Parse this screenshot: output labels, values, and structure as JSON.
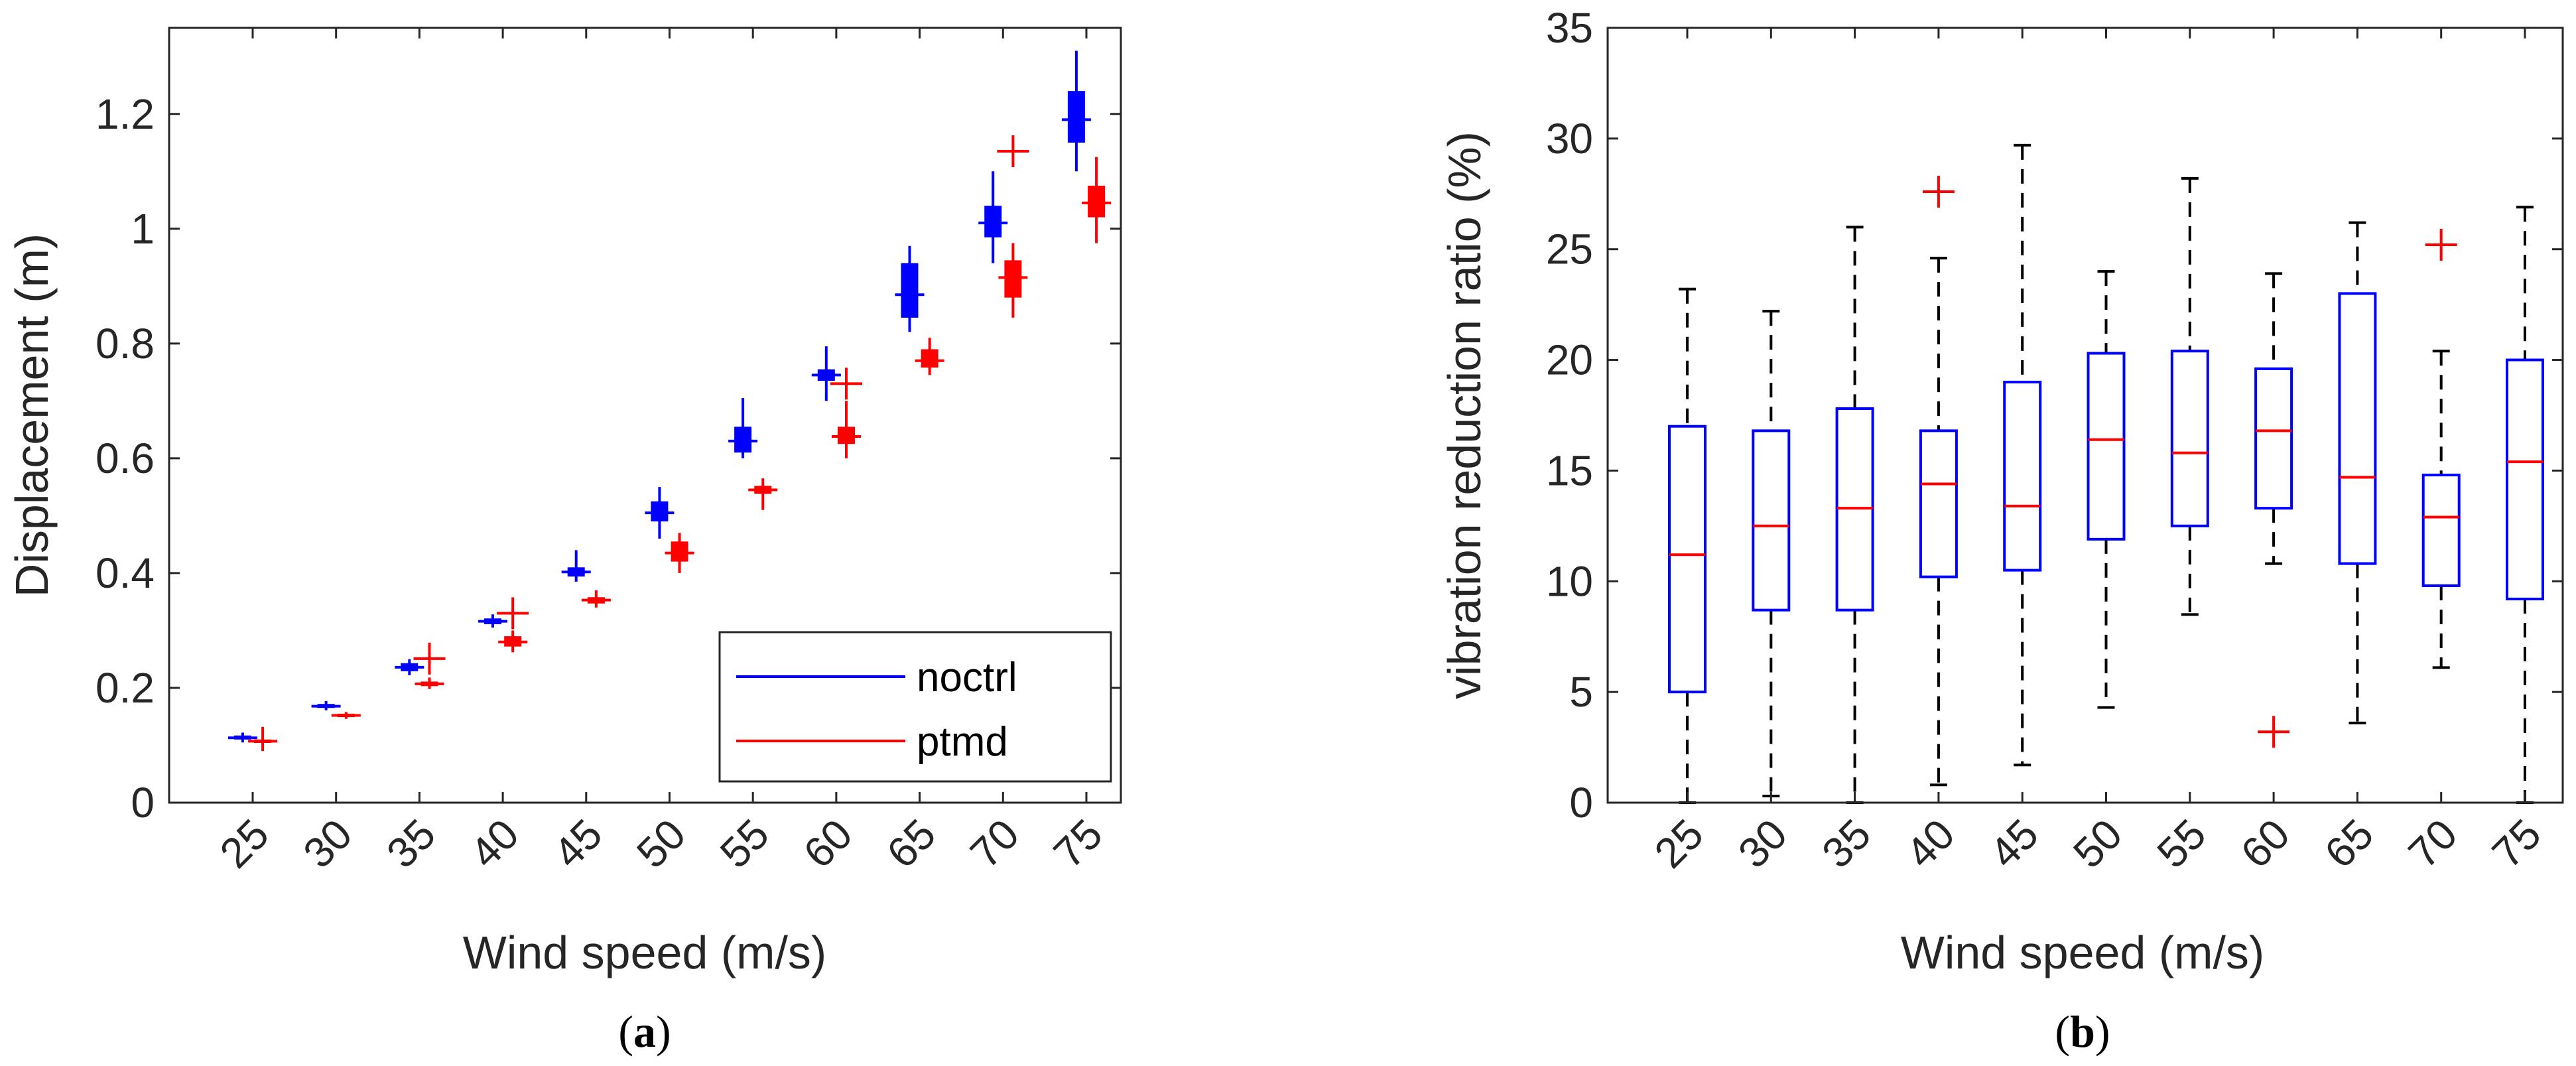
{
  "colors": {
    "noctrl": "#0000ff",
    "ptmd": "#ff0000",
    "whisker": "#000000",
    "axis": "#262626"
  },
  "chart_data": [
    {
      "type": "box",
      "panel": "a",
      "caption": {
        "open": "(",
        "letter": "a",
        "close": ")"
      },
      "xlabel": "Wind speed (m/s)",
      "ylabel": "Displacement (m)",
      "categories": [
        "25",
        "30",
        "35",
        "40",
        "45",
        "50",
        "55",
        "60",
        "65",
        "70",
        "75"
      ],
      "ylim": [
        0,
        1.35
      ],
      "yticks": [
        0,
        0.2,
        0.4,
        0.6,
        0.8,
        1,
        1.2
      ],
      "ytick_labels": [
        "0",
        "0.2",
        "0.4",
        "0.6",
        "0.8",
        "1",
        "1.2"
      ],
      "grid": false,
      "legend": {
        "position": "bottom-right",
        "entries": [
          "noctrl",
          "ptmd"
        ]
      },
      "series": [
        {
          "name": "noctrl",
          "color": "#0000ff",
          "offset": -0.12,
          "boxes": [
            {
              "lw": 0.105,
              "q1": 0.11,
              "median": 0.113,
              "q3": 0.117,
              "uw": 0.122,
              "outliers": []
            },
            {
              "lw": 0.161,
              "q1": 0.165,
              "median": 0.168,
              "q3": 0.172,
              "uw": 0.177,
              "outliers": []
            },
            {
              "lw": 0.222,
              "q1": 0.229,
              "median": 0.236,
              "q3": 0.243,
              "uw": 0.25,
              "outliers": []
            },
            {
              "lw": 0.305,
              "q1": 0.311,
              "median": 0.316,
              "q3": 0.321,
              "uw": 0.328,
              "outliers": []
            },
            {
              "lw": 0.385,
              "q1": 0.394,
              "median": 0.402,
              "q3": 0.41,
              "uw": 0.44,
              "outliers": []
            },
            {
              "lw": 0.46,
              "q1": 0.49,
              "median": 0.505,
              "q3": 0.525,
              "uw": 0.55,
              "outliers": []
            },
            {
              "lw": 0.6,
              "q1": 0.61,
              "median": 0.63,
              "q3": 0.655,
              "uw": 0.705,
              "outliers": []
            },
            {
              "lw": 0.7,
              "q1": 0.735,
              "median": 0.745,
              "q3": 0.755,
              "uw": 0.795,
              "outliers": []
            },
            {
              "lw": 0.82,
              "q1": 0.845,
              "median": 0.885,
              "q3": 0.94,
              "uw": 0.97,
              "outliers": []
            },
            {
              "lw": 0.94,
              "q1": 0.985,
              "median": 1.01,
              "q3": 1.04,
              "uw": 1.1,
              "outliers": []
            },
            {
              "lw": 1.1,
              "q1": 1.15,
              "median": 1.19,
              "q3": 1.24,
              "uw": 1.31,
              "outliers": []
            }
          ]
        },
        {
          "name": "ptmd",
          "color": "#ff0000",
          "offset": 0.12,
          "boxes": [
            {
              "lw": 0.09,
              "q1": 0.104,
              "median": 0.107,
              "q3": 0.11,
              "uw": 0.132,
              "outliers": []
            },
            {
              "lw": 0.146,
              "q1": 0.149,
              "median": 0.152,
              "q3": 0.155,
              "uw": 0.158,
              "outliers": []
            },
            {
              "lw": 0.198,
              "q1": 0.203,
              "median": 0.207,
              "q3": 0.211,
              "uw": 0.218,
              "outliers": [
                0.251
              ]
            },
            {
              "lw": 0.262,
              "q1": 0.272,
              "median": 0.28,
              "q3": 0.29,
              "uw": 0.3,
              "outliers": [
                0.33
              ]
            },
            {
              "lw": 0.34,
              "q1": 0.347,
              "median": 0.353,
              "q3": 0.358,
              "uw": 0.37,
              "outliers": []
            },
            {
              "lw": 0.4,
              "q1": 0.42,
              "median": 0.435,
              "q3": 0.455,
              "uw": 0.47,
              "outliers": []
            },
            {
              "lw": 0.51,
              "q1": 0.538,
              "median": 0.545,
              "q3": 0.552,
              "uw": 0.565,
              "outliers": []
            },
            {
              "lw": 0.6,
              "q1": 0.625,
              "median": 0.638,
              "q3": 0.655,
              "uw": 0.7,
              "outliers": [
                0.73
              ]
            },
            {
              "lw": 0.745,
              "q1": 0.758,
              "median": 0.77,
              "q3": 0.79,
              "uw": 0.81,
              "outliers": []
            },
            {
              "lw": 0.845,
              "q1": 0.88,
              "median": 0.915,
              "q3": 0.945,
              "uw": 0.975,
              "outliers": [
                1.135
              ]
            },
            {
              "lw": 0.975,
              "q1": 1.02,
              "median": 1.045,
              "q3": 1.075,
              "uw": 1.125,
              "outliers": []
            }
          ]
        }
      ]
    },
    {
      "type": "box",
      "panel": "b",
      "caption": {
        "open": "(",
        "letter": "b",
        "close": ")"
      },
      "xlabel": "Wind speed (m/s)",
      "ylabel": "vibration reduction ratio (%)",
      "categories": [
        "25",
        "30",
        "35",
        "40",
        "45",
        "50",
        "55",
        "60",
        "65",
        "70",
        "75"
      ],
      "ylim": [
        0,
        35
      ],
      "yticks": [
        0,
        5,
        10,
        15,
        20,
        25,
        30,
        35
      ],
      "ytick_labels": [
        "0",
        "5",
        "10",
        "15",
        "20",
        "25",
        "30",
        "35"
      ],
      "grid": false,
      "box_color": "#0000ff",
      "median_color": "#ff0000",
      "boxes": [
        {
          "lw": 0.0,
          "q1": 5.0,
          "median": 11.2,
          "q3": 17.0,
          "uw": 23.2,
          "outliers": []
        },
        {
          "lw": 0.3,
          "q1": 8.7,
          "median": 12.5,
          "q3": 16.8,
          "uw": 22.2,
          "outliers": []
        },
        {
          "lw": 0.0,
          "q1": 8.7,
          "median": 13.3,
          "q3": 17.8,
          "uw": 26.0,
          "outliers": []
        },
        {
          "lw": 0.8,
          "q1": 10.2,
          "median": 14.4,
          "q3": 16.8,
          "uw": 24.6,
          "outliers": [
            27.6
          ]
        },
        {
          "lw": 1.7,
          "q1": 10.5,
          "median": 13.4,
          "q3": 19.0,
          "uw": 29.7,
          "outliers": []
        },
        {
          "lw": 4.3,
          "q1": 11.9,
          "median": 16.4,
          "q3": 20.3,
          "uw": 24.0,
          "outliers": []
        },
        {
          "lw": 8.5,
          "q1": 12.5,
          "median": 15.8,
          "q3": 20.4,
          "uw": 28.2,
          "outliers": []
        },
        {
          "lw": 10.8,
          "q1": 13.3,
          "median": 16.8,
          "q3": 19.6,
          "uw": 23.9,
          "outliers": [
            3.2
          ]
        },
        {
          "lw": 3.6,
          "q1": 10.8,
          "median": 14.7,
          "q3": 23.0,
          "uw": 26.2,
          "outliers": []
        },
        {
          "lw": 6.1,
          "q1": 9.8,
          "median": 12.9,
          "q3": 14.8,
          "uw": 20.4,
          "outliers": [
            25.2
          ]
        },
        {
          "lw": 0.0,
          "q1": 9.2,
          "median": 15.4,
          "q3": 20.0,
          "uw": 26.9,
          "outliers": []
        }
      ]
    }
  ]
}
